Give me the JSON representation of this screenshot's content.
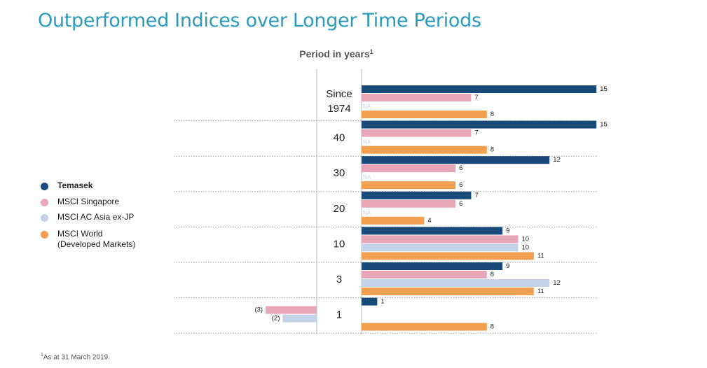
{
  "title": "Outperformed Indices over Longer Time Periods",
  "footnote": {
    "marker": "1",
    "text": "As at 31 March 2019."
  },
  "legend": [
    {
      "label": "Temasek",
      "color": "#1a4a7a",
      "bold": true
    },
    {
      "label": "MSCI Singapore",
      "color": "#e8a7b8",
      "bold": false
    },
    {
      "label": "MSCI AC Asia ex-JP",
      "color": "#c5d3e6",
      "bold": false
    },
    {
      "label": "MSCI World\n(Developed Markets)",
      "color": "#f0a050",
      "bold": false
    }
  ],
  "chart_data": {
    "type": "bar",
    "orientation": "horizontal",
    "title": "",
    "category_axis_label": "Period in years",
    "category_axis_label_superscript": "1",
    "categories": [
      "Since\n1974",
      "40",
      "30",
      "20",
      "10",
      "3",
      "1"
    ],
    "series": [
      {
        "name": "Temasek",
        "color": "#1a4a7a",
        "values": [
          15,
          15,
          12,
          7,
          9,
          9,
          1
        ]
      },
      {
        "name": "MSCI Singapore",
        "color": "#e8a7b8",
        "values": [
          7,
          7,
          6,
          6,
          10,
          8,
          -3
        ]
      },
      {
        "name": "MSCI AC Asia ex-JP",
        "color": "#c5d3e6",
        "values": [
          null,
          null,
          null,
          null,
          10,
          12,
          -2
        ]
      },
      {
        "name": "MSCI World\n(Developed Markets)",
        "color": "#f0a050",
        "values": [
          8,
          8,
          6,
          4,
          11,
          11,
          8
        ]
      }
    ],
    "value_labels": [
      [
        "15",
        "7",
        "NA",
        "8"
      ],
      [
        "15",
        "7",
        "NA",
        "8"
      ],
      [
        "12",
        "6",
        "NA",
        "6"
      ],
      [
        "7",
        "6",
        "NA",
        "4"
      ],
      [
        "9",
        "10",
        "10",
        "11"
      ],
      [
        "9",
        "8",
        "12",
        "11"
      ],
      [
        "1",
        "(3)",
        "(2)",
        "8"
      ]
    ],
    "na_label": "NA",
    "xlim": [
      -4,
      15
    ],
    "grid": false
  }
}
